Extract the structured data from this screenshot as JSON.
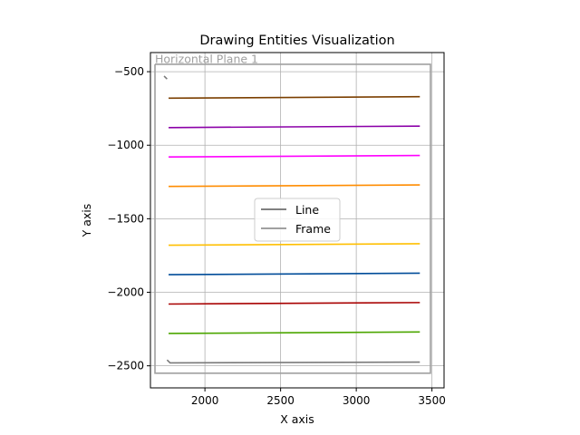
{
  "chart_data": {
    "type": "line",
    "title": "Drawing Entities Visualization",
    "xlabel": "X axis",
    "ylabel": "Y axis",
    "xlim": [
      1640,
      3580
    ],
    "ylim": [
      -2650,
      -370
    ],
    "xticks": [
      2000,
      2500,
      3000,
      3500
    ],
    "yticks": [
      -500,
      -1000,
      -1500,
      -2000,
      -2500
    ],
    "grid": true,
    "legend": {
      "position": "center",
      "entries": [
        {
          "label": "Line",
          "color": "#808080"
        },
        {
          "label": "Frame",
          "color": "#a0a0a0"
        }
      ]
    },
    "annotation": {
      "text": "Horizontal Plane 1",
      "x": 1670,
      "y": -440,
      "color": "#a0a0a0"
    },
    "frame": {
      "color": "#a0a0a0",
      "x": [
        1670,
        3490,
        3490,
        1670,
        1670
      ],
      "y": [
        -450,
        -450,
        -2550,
        -2550,
        -450
      ]
    },
    "series": [
      {
        "color": "#7a7a7a",
        "x": [
          1730,
          1750
        ],
        "y": [
          -530,
          -550
        ]
      },
      {
        "color": "#7b3f00",
        "x": [
          1760,
          3420
        ],
        "y": [
          -680,
          -670
        ]
      },
      {
        "color": "#8b00a8",
        "x": [
          1760,
          3420
        ],
        "y": [
          -880,
          -870
        ]
      },
      {
        "color": "#ff00ff",
        "x": [
          1760,
          3420
        ],
        "y": [
          -1080,
          -1070
        ]
      },
      {
        "color": "#ff8c00",
        "x": [
          1760,
          3420
        ],
        "y": [
          -1280,
          -1270
        ]
      },
      {
        "color": "#ffbf00",
        "x": [
          1760,
          3420
        ],
        "y": [
          -1680,
          -1670
        ]
      },
      {
        "color": "#004c99",
        "x": [
          1760,
          3420
        ],
        "y": [
          -1880,
          -1870
        ]
      },
      {
        "color": "#a80000",
        "x": [
          1760,
          3420
        ],
        "y": [
          -2080,
          -2070
        ]
      },
      {
        "color": "#4ca600",
        "x": [
          1760,
          3420
        ],
        "y": [
          -2280,
          -2270
        ]
      },
      {
        "color": "#7a7a7a",
        "x": [
          1750,
          1770,
          3420
        ],
        "y": [
          -2460,
          -2480,
          -2475
        ]
      }
    ]
  }
}
